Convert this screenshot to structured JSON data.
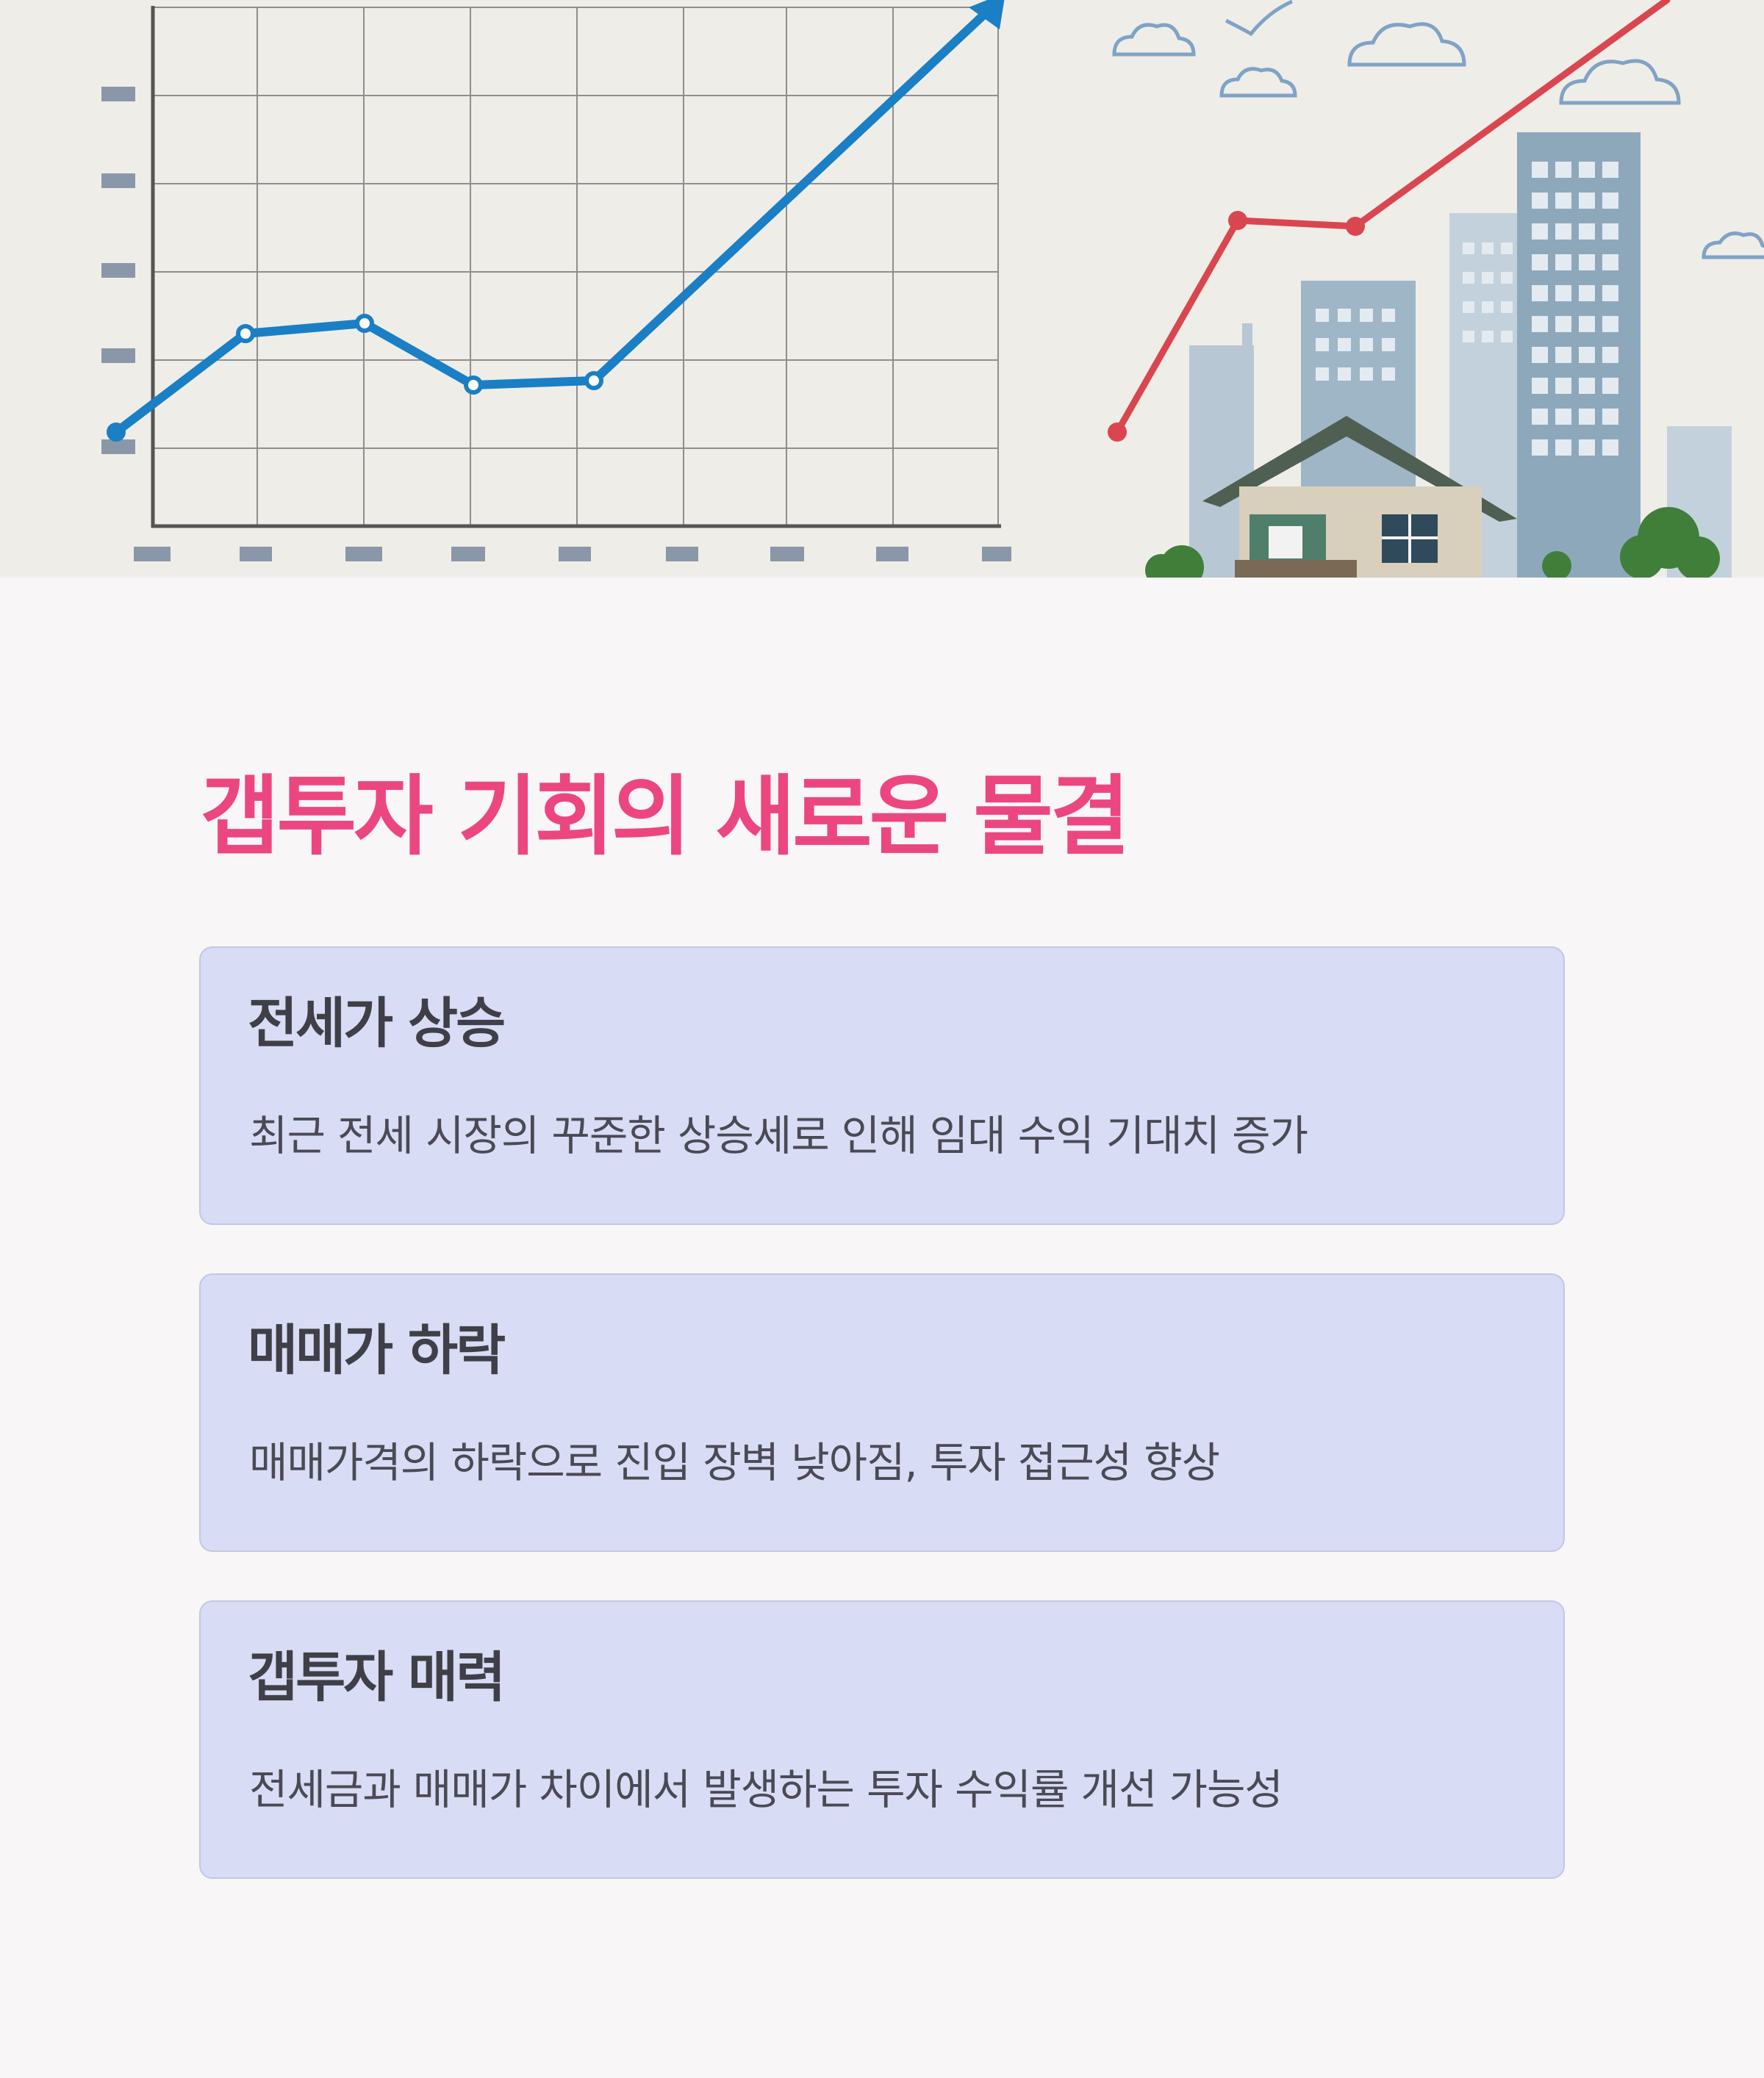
{
  "hero": {
    "image": "line-chart-with-rising-arrow-and-city-buildings-illustration",
    "colors": {
      "paper": "#efede8",
      "grid": "#8e8e8e",
      "blue_line": "#1a7fc4",
      "red_line": "#d9464f",
      "building": "#9fb6c6",
      "cloud": "#7fa3c6",
      "tree": "#3f7f3a"
    }
  },
  "section": {
    "title": "갭투자 기회의 새로운 물결"
  },
  "cards": [
    {
      "title": "전세가 상승",
      "description": "최근 전세 시장의 꾸준한 상승세로 인해 임대 수익 기대치 증가"
    },
    {
      "title": "매매가 하락",
      "description": "매매가격의 하락으로 진입 장벽 낮아짐, 투자 접근성 향상"
    },
    {
      "title": "갭투자 매력",
      "description": "전세금과 매매가 차이에서 발생하는 투자 수익률 개선 가능성"
    }
  ],
  "theme": {
    "background": "#f8f6f6",
    "title_color": "#ec4680",
    "card_background": "#d8dcf4",
    "card_border": "#c3c7e6",
    "card_title_color": "#3f3f47",
    "card_text_color": "#4a4a55"
  }
}
